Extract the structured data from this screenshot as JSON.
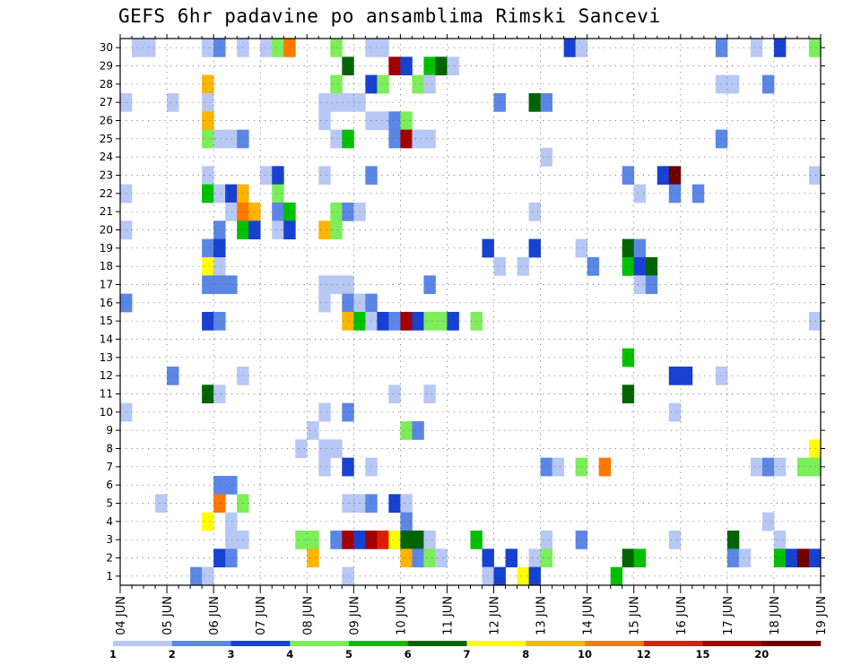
{
  "chart_data": {
    "type": "heatmap",
    "title": "GEFS 6hr padavine po ansamblima Rimski Sancevi",
    "y_tick_labels": [
      "1",
      "2",
      "3",
      "4",
      "5",
      "6",
      "7",
      "8",
      "9",
      "10",
      "11",
      "12",
      "13",
      "14",
      "15",
      "16",
      "17",
      "18",
      "19",
      "20",
      "21",
      "22",
      "23",
      "24",
      "25",
      "26",
      "27",
      "28",
      "29",
      "30"
    ],
    "x_tick_labels": [
      "04 JUN",
      "05 JUN",
      "06 JUN",
      "07 JUN",
      "08 JUN",
      "09 JUN",
      "10 JUN",
      "11 JUN",
      "12 JUN",
      "13 JUN",
      "14 JUN",
      "15 JUN",
      "16 JUN",
      "17 JUN",
      "18 JUN",
      "19 JUN"
    ],
    "x_range": [
      0,
      60
    ],
    "y_range": [
      0.5,
      30.5
    ],
    "grid": true,
    "colorbar": {
      "labels": [
        "1",
        "2",
        "3",
        "4",
        "5",
        "6",
        "7",
        "8",
        "10",
        "12",
        "15",
        "20"
      ],
      "colors": [
        "#b8c8f4",
        "#5b86e6",
        "#1741d0",
        "#7ded5a",
        "#00c000",
        "#006400",
        "#ffff00",
        "#ffb400",
        "#ff7800",
        "#dc1e00",
        "#a00000",
        "#6e0000"
      ]
    },
    "cells": [
      [
        1,
        1,
        30
      ],
      [
        2,
        1,
        30
      ],
      [
        7,
        1,
        30
      ],
      [
        8,
        2,
        30
      ],
      [
        10,
        1,
        30
      ],
      [
        12,
        1,
        30
      ],
      [
        13,
        4,
        30
      ],
      [
        14,
        9,
        30
      ],
      [
        18,
        4,
        30
      ],
      [
        21,
        1,
        30
      ],
      [
        22,
        1,
        30
      ],
      [
        38,
        3,
        30
      ],
      [
        39,
        1,
        30
      ],
      [
        51,
        2,
        30
      ],
      [
        54,
        1,
        30
      ],
      [
        56,
        3,
        30
      ],
      [
        59,
        4,
        30
      ],
      [
        19,
        6,
        29
      ],
      [
        23,
        11,
        29
      ],
      [
        24,
        3,
        29
      ],
      [
        26,
        5,
        29
      ],
      [
        27,
        6,
        29
      ],
      [
        28,
        1,
        29
      ],
      [
        7,
        8,
        28
      ],
      [
        18,
        4,
        28
      ],
      [
        21,
        3,
        28
      ],
      [
        22,
        4,
        28
      ],
      [
        25,
        4,
        28
      ],
      [
        26,
        1,
        28
      ],
      [
        51,
        1,
        28
      ],
      [
        52,
        1,
        28
      ],
      [
        55,
        2,
        28
      ],
      [
        0,
        1,
        27
      ],
      [
        4,
        1,
        27
      ],
      [
        7,
        1,
        27
      ],
      [
        17,
        1,
        27
      ],
      [
        18,
        1,
        27
      ],
      [
        19,
        1,
        27
      ],
      [
        20,
        1,
        27
      ],
      [
        32,
        2,
        27
      ],
      [
        35,
        6,
        27
      ],
      [
        36,
        2,
        27
      ],
      [
        7,
        8,
        26
      ],
      [
        17,
        1,
        26
      ],
      [
        21,
        1,
        26
      ],
      [
        22,
        1,
        26
      ],
      [
        23,
        2,
        26
      ],
      [
        24,
        4,
        26
      ],
      [
        7,
        4,
        25
      ],
      [
        8,
        1,
        25
      ],
      [
        9,
        1,
        25
      ],
      [
        10,
        2,
        25
      ],
      [
        18,
        1,
        25
      ],
      [
        19,
        5,
        25
      ],
      [
        23,
        2,
        25
      ],
      [
        24,
        11,
        25
      ],
      [
        25,
        1,
        25
      ],
      [
        26,
        1,
        25
      ],
      [
        51,
        2,
        25
      ],
      [
        36,
        1,
        24
      ],
      [
        7,
        1,
        23
      ],
      [
        12,
        1,
        23
      ],
      [
        13,
        3,
        23
      ],
      [
        17,
        1,
        23
      ],
      [
        21,
        2,
        23
      ],
      [
        43,
        2,
        23
      ],
      [
        46,
        3,
        23
      ],
      [
        47,
        12,
        23
      ],
      [
        59,
        1,
        23
      ],
      [
        0,
        1,
        22
      ],
      [
        7,
        5,
        22
      ],
      [
        8,
        1,
        22
      ],
      [
        9,
        3,
        22
      ],
      [
        10,
        8,
        22
      ],
      [
        13,
        4,
        22
      ],
      [
        44,
        1,
        22
      ],
      [
        47,
        2,
        22
      ],
      [
        49,
        2,
        22
      ],
      [
        9,
        1,
        21
      ],
      [
        10,
        9,
        21
      ],
      [
        11,
        8,
        21
      ],
      [
        13,
        2,
        21
      ],
      [
        14,
        5,
        21
      ],
      [
        18,
        4,
        21
      ],
      [
        19,
        2,
        21
      ],
      [
        20,
        1,
        21
      ],
      [
        35,
        1,
        21
      ],
      [
        0,
        1,
        20
      ],
      [
        8,
        2,
        20
      ],
      [
        10,
        5,
        20
      ],
      [
        11,
        3,
        20
      ],
      [
        13,
        1,
        20
      ],
      [
        14,
        3,
        20
      ],
      [
        17,
        8,
        20
      ],
      [
        18,
        4,
        20
      ],
      [
        7,
        2,
        19
      ],
      [
        8,
        3,
        19
      ],
      [
        31,
        3,
        19
      ],
      [
        35,
        3,
        19
      ],
      [
        39,
        1,
        19
      ],
      [
        43,
        6,
        19
      ],
      [
        44,
        2,
        19
      ],
      [
        7,
        7,
        18
      ],
      [
        8,
        1,
        18
      ],
      [
        32,
        1,
        18
      ],
      [
        34,
        1,
        18
      ],
      [
        40,
        2,
        18
      ],
      [
        43,
        5,
        18
      ],
      [
        44,
        3,
        18
      ],
      [
        45,
        6,
        18
      ],
      [
        7,
        2,
        17
      ],
      [
        8,
        2,
        17
      ],
      [
        9,
        2,
        17
      ],
      [
        17,
        1,
        17
      ],
      [
        18,
        1,
        17
      ],
      [
        19,
        1,
        17
      ],
      [
        26,
        2,
        17
      ],
      [
        44,
        1,
        17
      ],
      [
        45,
        2,
        17
      ],
      [
        0,
        2,
        16
      ],
      [
        17,
        1,
        16
      ],
      [
        19,
        2,
        16
      ],
      [
        20,
        1,
        16
      ],
      [
        21,
        2,
        16
      ],
      [
        7,
        3,
        15
      ],
      [
        8,
        2,
        15
      ],
      [
        19,
        8,
        15
      ],
      [
        20,
        5,
        15
      ],
      [
        21,
        1,
        15
      ],
      [
        22,
        3,
        15
      ],
      [
        23,
        2,
        15
      ],
      [
        24,
        11,
        15
      ],
      [
        25,
        3,
        15
      ],
      [
        26,
        4,
        15
      ],
      [
        27,
        4,
        15
      ],
      [
        28,
        3,
        15
      ],
      [
        30,
        4,
        15
      ],
      [
        59,
        1,
        15
      ],
      [
        43,
        5,
        13
      ],
      [
        4,
        2,
        12
      ],
      [
        10,
        1,
        12
      ],
      [
        47,
        3,
        12
      ],
      [
        48,
        3,
        12
      ],
      [
        51,
        1,
        12
      ],
      [
        7,
        6,
        11
      ],
      [
        8,
        1,
        11
      ],
      [
        23,
        1,
        11
      ],
      [
        26,
        1,
        11
      ],
      [
        43,
        6,
        11
      ],
      [
        0,
        1,
        10
      ],
      [
        17,
        1,
        10
      ],
      [
        19,
        2,
        10
      ],
      [
        47,
        1,
        10
      ],
      [
        16,
        1,
        9
      ],
      [
        24,
        4,
        9
      ],
      [
        25,
        2,
        9
      ],
      [
        15,
        1,
        8
      ],
      [
        17,
        1,
        8
      ],
      [
        18,
        1,
        8
      ],
      [
        59,
        7,
        8
      ],
      [
        17,
        1,
        7
      ],
      [
        19,
        3,
        7
      ],
      [
        21,
        1,
        7
      ],
      [
        36,
        2,
        7
      ],
      [
        37,
        1,
        7
      ],
      [
        39,
        4,
        7
      ],
      [
        41,
        9,
        7
      ],
      [
        54,
        1,
        7
      ],
      [
        55,
        2,
        7
      ],
      [
        56,
        1,
        7
      ],
      [
        58,
        4,
        7
      ],
      [
        59,
        4,
        7
      ],
      [
        8,
        2,
        6
      ],
      [
        9,
        2,
        6
      ],
      [
        3,
        1,
        5
      ],
      [
        8,
        9,
        5
      ],
      [
        10,
        4,
        5
      ],
      [
        19,
        1,
        5
      ],
      [
        20,
        1,
        5
      ],
      [
        21,
        2,
        5
      ],
      [
        23,
        3,
        5
      ],
      [
        24,
        1,
        5
      ],
      [
        7,
        7,
        4
      ],
      [
        9,
        1,
        4
      ],
      [
        24,
        2,
        4
      ],
      [
        55,
        1,
        4
      ],
      [
        9,
        1,
        3
      ],
      [
        10,
        1,
        3
      ],
      [
        15,
        4,
        3
      ],
      [
        16,
        4,
        3
      ],
      [
        18,
        2,
        3
      ],
      [
        19,
        11,
        3
      ],
      [
        20,
        3,
        3
      ],
      [
        21,
        11,
        3
      ],
      [
        22,
        10,
        3
      ],
      [
        23,
        7,
        3
      ],
      [
        24,
        6,
        3
      ],
      [
        25,
        6,
        3
      ],
      [
        26,
        1,
        3
      ],
      [
        30,
        5,
        3
      ],
      [
        36,
        1,
        3
      ],
      [
        39,
        2,
        3
      ],
      [
        47,
        1,
        3
      ],
      [
        52,
        6,
        3
      ],
      [
        56,
        1,
        3
      ],
      [
        8,
        3,
        2
      ],
      [
        9,
        2,
        2
      ],
      [
        16,
        8,
        2
      ],
      [
        24,
        8,
        2
      ],
      [
        25,
        2,
        2
      ],
      [
        26,
        4,
        2
      ],
      [
        27,
        1,
        2
      ],
      [
        31,
        3,
        2
      ],
      [
        33,
        3,
        2
      ],
      [
        35,
        1,
        2
      ],
      [
        36,
        4,
        2
      ],
      [
        43,
        6,
        2
      ],
      [
        44,
        5,
        2
      ],
      [
        52,
        2,
        2
      ],
      [
        53,
        1,
        2
      ],
      [
        56,
        5,
        2
      ],
      [
        57,
        3,
        2
      ],
      [
        58,
        12,
        2
      ],
      [
        59,
        3,
        2
      ],
      [
        6,
        2,
        1
      ],
      [
        7,
        1,
        1
      ],
      [
        19,
        1,
        1
      ],
      [
        31,
        1,
        1
      ],
      [
        32,
        3,
        1
      ],
      [
        34,
        7,
        1
      ],
      [
        35,
        3,
        1
      ],
      [
        42,
        5,
        1
      ]
    ]
  }
}
